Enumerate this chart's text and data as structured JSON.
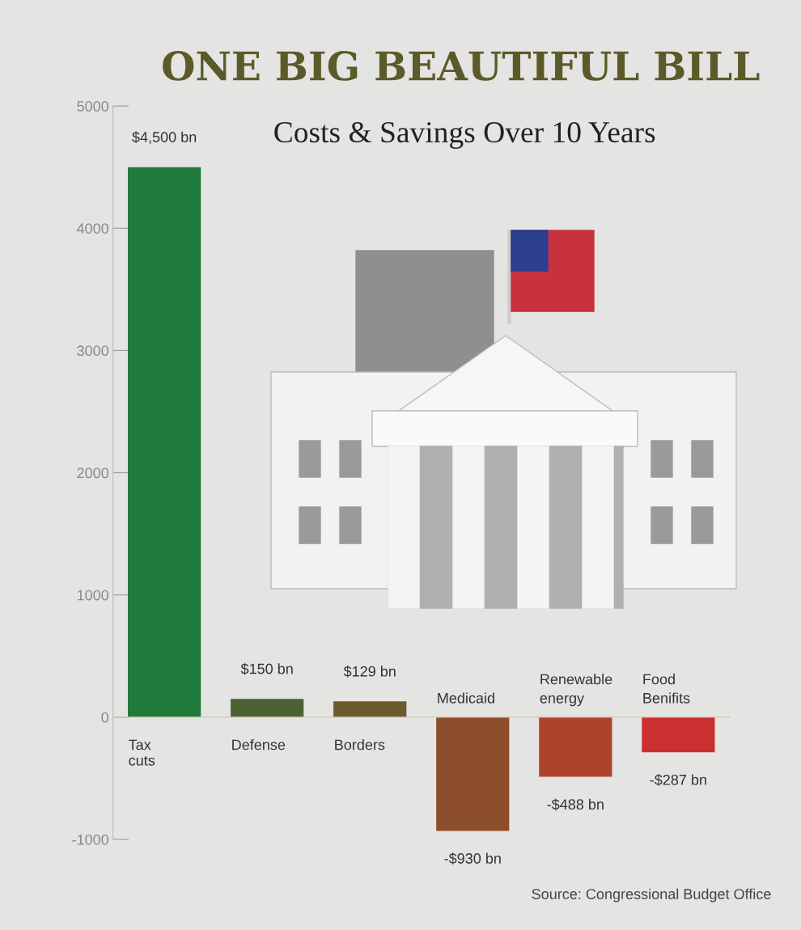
{
  "chart_data": {
    "type": "bar",
    "title": "ONE BIG BEAUTIFUL BILL",
    "subtitle": "Costs & Savings Over 10 Years",
    "categories": [
      "Tax cuts",
      "Defense",
      "Borders",
      "Medicaid",
      "Renewable energy",
      "Food Benifits"
    ],
    "values": [
      4500,
      150,
      129,
      -930,
      -488,
      -287
    ],
    "colors": [
      "#1f7a3c",
      "#4b6232",
      "#6a5a2c",
      "#8c4e2a",
      "#ad432c",
      "#c9302f"
    ],
    "value_labels": [
      "$4,500 bn",
      "$150 bn",
      "$129 bn",
      "-$930 bn",
      "-$488 bn",
      "-$287 bn"
    ],
    "ylim": [
      -1000,
      5000
    ],
    "yticks": [
      -1000,
      0,
      1000,
      2000,
      3000,
      4000,
      5000
    ],
    "annotations": [
      "Source: Congressional Budget Office"
    ]
  }
}
